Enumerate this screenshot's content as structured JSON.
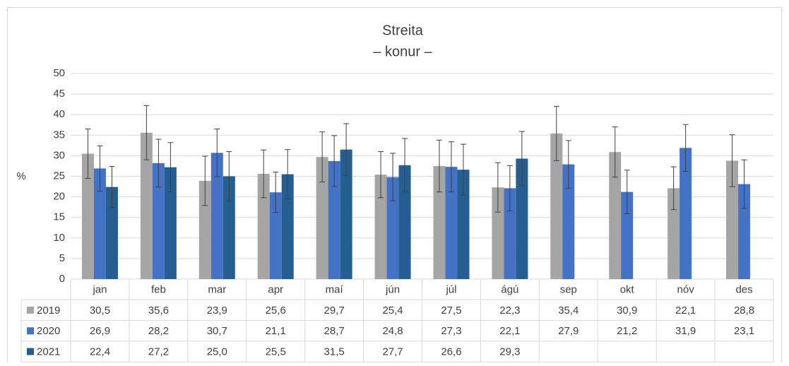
{
  "chart_data": {
    "type": "bar",
    "title": "Streita",
    "subtitle": "– konur –",
    "y_label": "%",
    "categories": [
      "jan",
      "feb",
      "mar",
      "apr",
      "maí",
      "jún",
      "júl",
      "ágú",
      "sep",
      "okt",
      "nóv",
      "des"
    ],
    "ylim": [
      0,
      50
    ],
    "yticks": [
      0,
      5,
      10,
      15,
      20,
      25,
      30,
      35,
      40,
      45,
      50
    ],
    "grid": true,
    "series": [
      {
        "name": "2019",
        "color": "#a5a5a5",
        "values": [
          30.5,
          35.6,
          23.9,
          25.6,
          29.7,
          25.4,
          27.5,
          22.3,
          35.4,
          30.9,
          22.1,
          28.8
        ],
        "value_labels": [
          "30,5",
          "35,6",
          "23,9",
          "25,6",
          "29,7",
          "25,4",
          "27,5",
          "22,3",
          "35,4",
          "30,9",
          "22,1",
          "28,8"
        ],
        "errors": [
          6,
          6.6,
          6,
          5.8,
          6.1,
          5.6,
          6.3,
          6,
          6.6,
          6.1,
          5.2,
          6.3
        ]
      },
      {
        "name": "2020",
        "color": "#4472c4",
        "values": [
          26.9,
          28.2,
          30.7,
          21.1,
          28.7,
          24.8,
          27.3,
          22.1,
          27.9,
          21.2,
          31.9,
          23.1
        ],
        "value_labels": [
          "26,9",
          "28,2",
          "30,7",
          "21,1",
          "28,7",
          "24,8",
          "27,3",
          "22,1",
          "27,9",
          "21,2",
          "31,9",
          "23,1"
        ],
        "errors": [
          5.5,
          5.8,
          5.8,
          4.9,
          6.2,
          5.8,
          6.1,
          5.5,
          5.8,
          5.3,
          5.7,
          5.9
        ]
      },
      {
        "name": "2021",
        "color": "#255e91",
        "values": [
          22.4,
          27.2,
          25.0,
          25.5,
          31.5,
          27.7,
          26.6,
          29.3,
          null,
          null,
          null,
          null
        ],
        "value_labels": [
          "22,4",
          "27,2",
          "25,0",
          "25,5",
          "31,5",
          "27,7",
          "26,6",
          "29,3",
          null,
          null,
          null,
          null
        ],
        "errors": [
          5,
          6,
          6,
          6,
          6.3,
          6.5,
          6.2,
          6.6,
          null,
          null,
          null,
          null
        ]
      }
    ]
  }
}
